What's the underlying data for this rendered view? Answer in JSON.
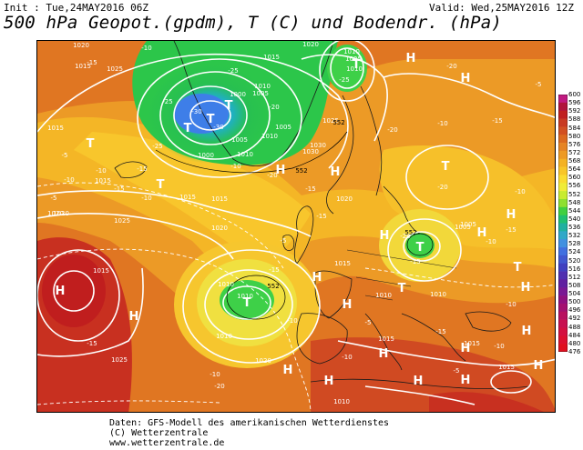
{
  "header": {
    "init": "Init : Tue,24MAY2016 06Z",
    "valid": "Valid: Wed,25MAY2016 12Z",
    "title": "500 hPa Geopot.(gpdm), T (C) und Bodendr. (hPa)"
  },
  "footer": {
    "line1": "Daten: GFS-Modell des amerikanischen Wetterdienstes",
    "line2": "(C) Wetterzentrale",
    "line3": "www.wetterzentrale.de"
  },
  "colorbar": {
    "labels": [
      "600",
      "596",
      "592",
      "588",
      "584",
      "580",
      "576",
      "572",
      "568",
      "564",
      "560",
      "556",
      "552",
      "548",
      "544",
      "540",
      "536",
      "532",
      "528",
      "524",
      "520",
      "516",
      "512",
      "508",
      "504",
      "500",
      "496",
      "492",
      "488",
      "484",
      "480",
      "476"
    ],
    "colors": [
      "#c01a80",
      "#b0143c",
      "#c02020",
      "#c83a22",
      "#d25022",
      "#dc6a20",
      "#e68424",
      "#ee9a24",
      "#f4b224",
      "#f8c628",
      "#fadc30",
      "#f0ec38",
      "#c8ec30",
      "#8ee030",
      "#40d040",
      "#20c070",
      "#20b0a0",
      "#30a8c8",
      "#4090e0",
      "#4070e0",
      "#4058d0",
      "#4040c0",
      "#5030b0",
      "#6020a0",
      "#7a1894",
      "#901080",
      "#a41070",
      "#b81060",
      "#c81050",
      "#d41040",
      "#dc1030",
      "#e01020"
    ]
  },
  "map": {
    "pressure_labels": [
      "1020",
      "1015",
      "1025",
      "1015",
      "1020",
      "1025",
      "1010",
      "1005",
      "1000",
      "1000",
      "1005",
      "1010",
      "1015",
      "1010",
      "1025",
      "1015",
      "1020",
      "1025",
      "1030",
      "1020",
      "1015",
      "1010",
      "1010",
      "1015",
      "1010",
      "1005",
      "1010",
      "1015",
      "1020",
      "1015",
      "1010",
      "1015",
      "1025",
      "1010",
      "1020",
      "1015",
      "1005",
      "1010",
      "1005",
      "1010",
      "1015",
      "1030",
      "1020"
    ],
    "temp_labels": [
      "-10",
      "-15",
      "-5",
      "-10",
      "-25",
      "-30",
      "-25",
      "-20",
      "-30",
      "-25",
      "-15",
      "-20",
      "-10",
      "-15",
      "-10",
      "-5",
      "-15",
      "-20",
      "-10",
      "-5",
      "-15",
      "-10",
      "-20",
      "-25",
      "-20",
      "-15",
      "-10",
      "-15",
      "-20",
      "-15",
      "-10",
      "-5",
      "-10",
      "-15",
      "-10",
      "-5",
      "-10",
      "-15",
      "-20",
      "-10",
      "-5",
      "-10",
      "-15"
    ],
    "geopot_labels": [
      "552",
      "552",
      "552",
      "552"
    ],
    "centers": {
      "lows": [
        "T",
        "T",
        "T",
        "T",
        "T",
        "T",
        "T",
        "T",
        "T",
        "T",
        "T"
      ],
      "highs": [
        "H",
        "H",
        "H",
        "H",
        "H",
        "H",
        "H",
        "H",
        "H",
        "H",
        "H",
        "H",
        "H",
        "H",
        "H",
        "H",
        "H",
        "H",
        "H",
        "H"
      ]
    }
  }
}
